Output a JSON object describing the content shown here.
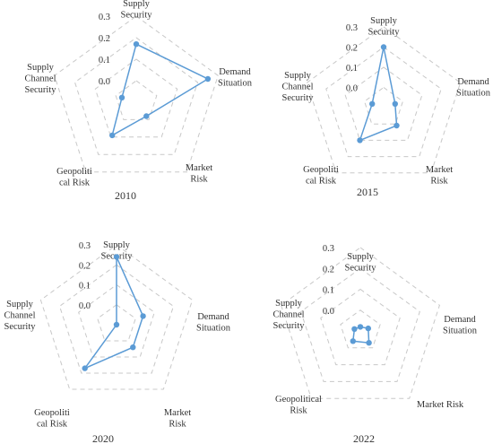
{
  "chart_data": [
    {
      "type": "radar",
      "title": "2010",
      "axes": [
        "Supply Security",
        "Demand Situation",
        "Market Risk",
        "Geopolitical Risk",
        "Supply Channel Security"
      ],
      "axis_labels": [
        [
          "Supply",
          "Security"
        ],
        [
          "Demand",
          "Situation"
        ],
        [
          "Market",
          "Risk"
        ],
        [
          "Geopoliti",
          "cal Risk"
        ],
        [
          "Supply",
          "Channel",
          "Security"
        ]
      ],
      "ticks": [
        "0.0",
        "0.1",
        "0.2",
        "0.3"
      ],
      "rmin": -0.1,
      "rmax": 0.3,
      "values": [
        0.17,
        0.25,
        -0.02,
        0.09,
        -0.03
      ],
      "colors": {
        "series": "#5b9bd5",
        "grid": "#c8c8c8"
      }
    },
    {
      "type": "radar",
      "title": "2015",
      "axes": [
        "Supply Security",
        "Demand Situation",
        "Market Risk",
        "Geopolitical Risk",
        "Supply Channel Security"
      ],
      "axis_labels": [
        [
          "Supply",
          "Security"
        ],
        [
          "Demand",
          "Situation"
        ],
        [
          "Market",
          "Risk"
        ],
        [
          "Geopoliti",
          "cal Risk"
        ],
        [
          "Supply",
          "Channel",
          "Security"
        ]
      ],
      "ticks": [
        "0.0",
        "0.1",
        "0.2",
        "0.3"
      ],
      "rmin": -0.1,
      "rmax": 0.3,
      "values": [
        0.2,
        -0.04,
        0.01,
        0.1,
        -0.04
      ],
      "colors": {
        "series": "#5b9bd5",
        "grid": "#c8c8c8"
      }
    },
    {
      "type": "radar",
      "title": "2020",
      "axes": [
        "Supply Security",
        "Demand Situation",
        "Market Risk",
        "Geopolitical Risk",
        "Supply Channel Security"
      ],
      "axis_labels": [
        [
          "Supply",
          "Security"
        ],
        [
          "Demand",
          "Situation"
        ],
        [
          "Market",
          "Risk"
        ],
        [
          "Geopoliti",
          "cal Risk"
        ],
        [
          "Supply",
          "Channel",
          "Security"
        ]
      ],
      "ticks": [
        "0.0",
        "0.1",
        "0.2",
        "0.3"
      ],
      "rmin": -0.1,
      "rmax": 0.3,
      "values": [
        0.24,
        0.04,
        0.04,
        0.17,
        -0.1
      ],
      "colors": {
        "series": "#5b9bd5",
        "grid": "#c8c8c8"
      }
    },
    {
      "type": "radar",
      "title": "2022",
      "axes": [
        "Supply Security",
        "Demand Situation",
        "Market Risk",
        "Geopolitical Risk",
        "Supply Channel Security"
      ],
      "axis_labels": [
        [
          "Supply",
          "Security"
        ],
        [
          "Demand",
          "Situation"
        ],
        [
          "Market Risk"
        ],
        [
          "Geopolitical",
          "Risk"
        ],
        [
          "Supply",
          "Channel",
          "Security"
        ]
      ],
      "ticks": [
        "0.0",
        "0.1",
        "0.2",
        "0.3"
      ],
      "rmin": -0.1,
      "rmax": 0.3,
      "values": [
        -0.08,
        -0.06,
        -0.03,
        -0.04,
        -0.07
      ],
      "colors": {
        "series": "#5b9bd5",
        "grid": "#c8c8c8"
      }
    }
  ]
}
